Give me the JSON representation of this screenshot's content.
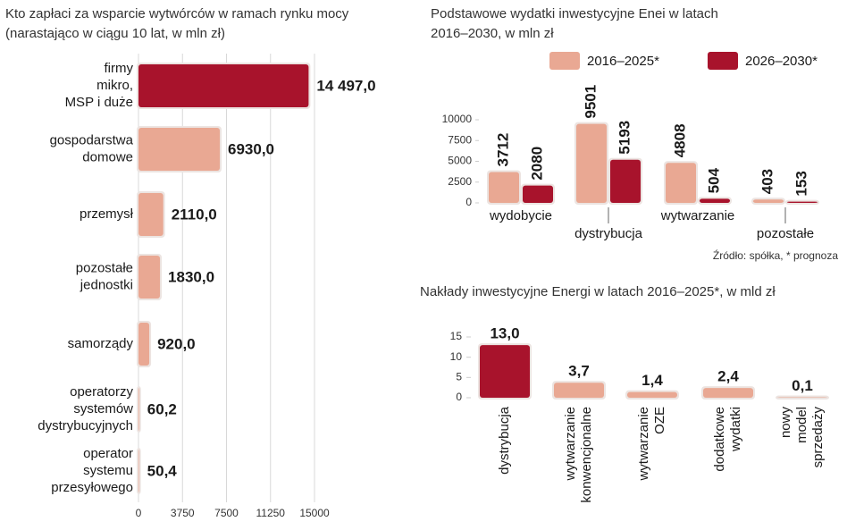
{
  "chart_data": [
    {
      "type": "hbar",
      "title": "Kto zapłaci za wsparcie wytwórców w ramach rynku mocy",
      "subtitle": "(narastająco w ciągu 10 lat, w mln zł)",
      "categories": [
        [
          "firmy",
          "mikro,",
          "MSP i duże"
        ],
        [
          "gospodarstwa",
          "domowe"
        ],
        [
          "przemysł"
        ],
        [
          "pozostałe",
          "jednostki"
        ],
        [
          "samorządy"
        ],
        [
          "operatorzy",
          "systemów",
          "dystrybucyjnych"
        ],
        [
          "operator",
          "systemu",
          "przesyłowego"
        ]
      ],
      "values": [
        14497.0,
        6930.0,
        2110.0,
        1830.0,
        920.0,
        60.2,
        50.4
      ],
      "value_labels": [
        "14 497,0",
        "6930,0",
        "2110,0",
        "1830,0",
        "920,0",
        "60,2",
        "50,4"
      ],
      "colors": [
        "#a8132c",
        "#e9a893",
        "#e9a893",
        "#e9a893",
        "#e9a893",
        "#e9a893",
        "#e9a893"
      ],
      "xlim": [
        0,
        15000
      ],
      "xticks": [
        0,
        3750,
        7500,
        11250,
        15000
      ]
    },
    {
      "type": "grouped-bar",
      "title": [
        "Podstawowe wydatki inwestycyjne Enei w latach",
        "2016–2030, w mln zł"
      ],
      "categories": [
        "wydobycie",
        "dystrybucja",
        "wytwarzanie",
        "pozostałe"
      ],
      "series": [
        {
          "name": "2016–2025*",
          "color": "#e9a893",
          "values": [
            3712,
            9501,
            4808,
            403
          ]
        },
        {
          "name": "2026–2030*",
          "color": "#a8132c",
          "values": [
            2080,
            5193,
            504,
            153
          ]
        }
      ],
      "ylim": [
        0,
        10000
      ],
      "yticks": [
        0,
        2500,
        5000,
        7500,
        10000
      ],
      "source": "Źródło: spółka, * prognoza"
    },
    {
      "type": "bar",
      "title": "Nakłady inwestycyjne Energi w latach 2016–2025*, w mld zł",
      "categories": [
        [
          "dystrybucja"
        ],
        [
          "wytwarzanie",
          "konwencjonalne"
        ],
        [
          "wytwarzanie",
          "OZE"
        ],
        [
          "dodatkowe",
          "wydatki"
        ],
        [
          "nowy",
          "model",
          "sprzedaży"
        ]
      ],
      "values": [
        13.0,
        3.7,
        1.4,
        2.4,
        0.1
      ],
      "value_labels": [
        "13,0",
        "3,7",
        "1,4",
        "2,4",
        "0,1"
      ],
      "colors": [
        "#a8132c",
        "#e9a893",
        "#e9a893",
        "#e9a893",
        "#e9a893"
      ],
      "ylim": [
        0,
        15
      ],
      "yticks": [
        0,
        5,
        10,
        15
      ]
    }
  ]
}
